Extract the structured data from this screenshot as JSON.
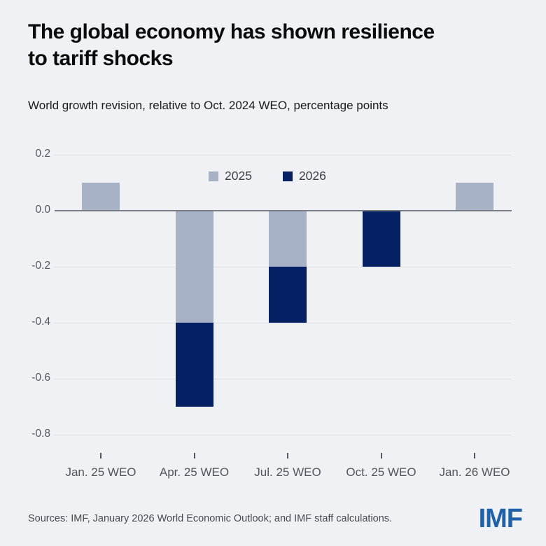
{
  "header": {
    "title_lines": [
      "The global economy has shown resilience",
      "to tariff shocks"
    ],
    "subtitle": "World growth revision, relative to Oct. 2024 WEO, percentage points"
  },
  "chart_data": {
    "type": "bar",
    "stacked": true,
    "title": "The global economy has shown resilience to tariff shocks",
    "subtitle": "World growth revision, relative to Oct. 2024 WEO, percentage points",
    "categories": [
      "Jan. 25 WEO",
      "Apr. 25 WEO",
      "Jul. 25 WEO",
      "Oct. 25 WEO",
      "Jan. 26 WEO"
    ],
    "series": [
      {
        "name": "2025",
        "color": "#a8b2c7",
        "values": [
          0.1,
          -0.4,
          -0.2,
          0.0,
          0.1
        ]
      },
      {
        "name": "2026",
        "color": "#062163",
        "values": [
          0.0,
          -0.3,
          -0.2,
          -0.2,
          0.0
        ]
      }
    ],
    "yticks": [
      {
        "label": "0.2",
        "value": 0.2
      },
      {
        "label": "0.0",
        "value": 0.0
      },
      {
        "label": "-0.2",
        "value": -0.2
      },
      {
        "label": "-0.4",
        "value": -0.4
      },
      {
        "label": "-0.6",
        "value": -0.6
      },
      {
        "label": "-0.8",
        "value": -0.8
      }
    ],
    "ylim": [
      -0.8,
      0.2
    ],
    "grid": "horizontal",
    "legend_position": "top-center"
  },
  "footer": {
    "sources": "Sources: IMF, January 2026 World Economic Outlook; and IMF staff calculations.",
    "logo": "IMF",
    "logo_color": "#2161a9"
  },
  "colors": {
    "background": "#eff1f4",
    "series_2025": "#a8b2c7",
    "series_2026": "#062163",
    "gridline": "#dbdee2",
    "zero_line": "#787c83"
  }
}
